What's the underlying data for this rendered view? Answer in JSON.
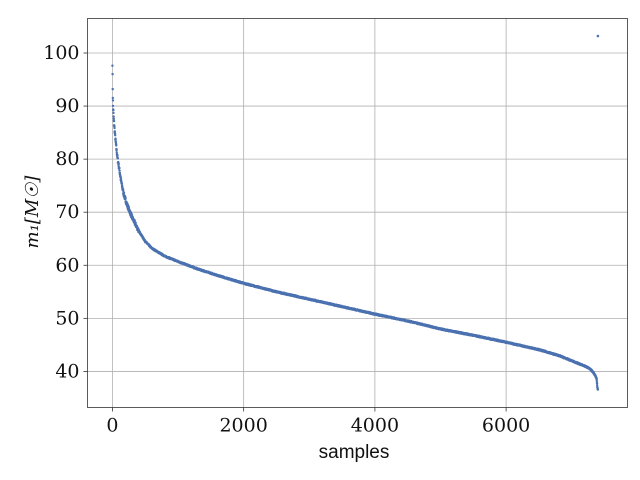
{
  "chart_data": {
    "type": "scatter",
    "xlabel": "samples",
    "ylabel": "m₁[M☉]",
    "xlim": [
      -380,
      7850
    ],
    "ylim": [
      33.2,
      106.5
    ],
    "xticks": [
      0,
      2000,
      4000,
      6000
    ],
    "xtick_labels": [
      "0",
      "2000",
      "4000",
      "6000"
    ],
    "yticks": [
      40,
      50,
      60,
      70,
      80,
      90,
      100
    ],
    "ytick_labels": [
      "40",
      "50",
      "60",
      "70",
      "80",
      "90",
      "100"
    ],
    "grid": true,
    "series_color": "#4c72b0",
    "n_samples": 7400,
    "curve_anchors": {
      "x": [
        0,
        5,
        10,
        20,
        40,
        60,
        80,
        100,
        130,
        170,
        220,
        300,
        400,
        500,
        600,
        800,
        1000,
        1300,
        1600,
        2000,
        2500,
        3000,
        3500,
        4000,
        4500,
        5000,
        5500,
        6000,
        6500,
        6800,
        7000,
        7100,
        7200,
        7250,
        7300,
        7330,
        7360,
        7380,
        7390,
        7399
      ],
      "y": [
        98.0,
        92.2,
        90.0,
        87.5,
        84.5,
        82.0,
        80.0,
        78.5,
        76.0,
        73.5,
        71.5,
        69.0,
        66.5,
        64.5,
        63.2,
        61.7,
        60.7,
        59.3,
        58.1,
        56.6,
        55.0,
        53.6,
        52.2,
        50.8,
        49.5,
        48.0,
        46.8,
        45.5,
        44.1,
        43.0,
        42.0,
        41.5,
        41.0,
        40.7,
        40.2,
        39.8,
        39.2,
        38.6,
        37.0,
        36.5
      ]
    },
    "outliers": [
      {
        "x": 7399,
        "y": 103.2
      }
    ]
  }
}
